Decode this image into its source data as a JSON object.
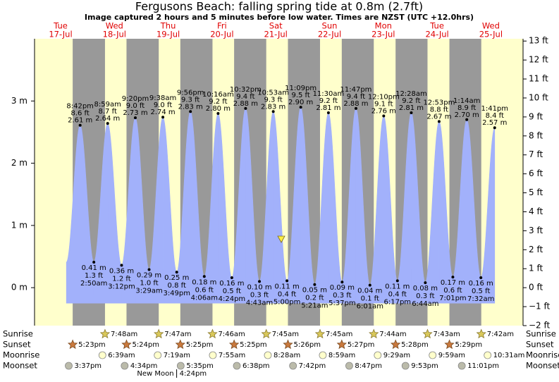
{
  "chart_data": {
    "type": "tide",
    "title": "Fergusons Beach: falling  spring tide at 0.8m (2.7ft)",
    "subtitle": "Image captured 2 hours and 5 minutes before low water. Times are NZST (UTC +12.0hrs)",
    "ylim": [
      -0.61,
      4.0
    ],
    "yticks": [
      {
        "value": 0,
        "label": "0 m"
      },
      {
        "value": 1,
        "label": "1 m"
      },
      {
        "value": 2,
        "label": "2 m"
      },
      {
        "value": 3,
        "label": "3 m"
      }
    ],
    "y2lim": [
      -2,
      13.12
    ],
    "y2ticks": [
      {
        "value": -2,
        "label": "−2 ft"
      },
      {
        "value": -1,
        "label": "−1 ft"
      },
      {
        "value": 0,
        "label": "0 ft"
      },
      {
        "value": 1,
        "label": "1 ft"
      },
      {
        "value": 2,
        "label": "2 ft"
      },
      {
        "value": 3,
        "label": "3 ft"
      },
      {
        "value": 4,
        "label": "4 ft"
      },
      {
        "value": 5,
        "label": "5 ft"
      },
      {
        "value": 6,
        "label": "6 ft"
      },
      {
        "value": 7,
        "label": "7 ft"
      },
      {
        "value": 8,
        "label": "8 ft"
      },
      {
        "value": 9,
        "label": "9 ft"
      },
      {
        "value": 10,
        "label": "10 ft"
      },
      {
        "value": 11,
        "label": "11 ft"
      },
      {
        "value": 12,
        "label": "12 ft"
      },
      {
        "value": 13,
        "label": "13 ft"
      }
    ],
    "colors": {
      "day": "#ffffcc",
      "night": "#999999",
      "tide": "#a2b1fb",
      "date": "#e00000"
    },
    "row_labels": {
      "sunrise": "Sunrise",
      "sunset": "Sunset",
      "moonrise": "Moonrise",
      "moonset": "Moonset"
    },
    "days": [
      {
        "weekday": "Tue",
        "date": "17-Jul",
        "sunrise": null,
        "sunset": "5:23pm",
        "moonrise": null,
        "moonset": "3:37pm",
        "tides": [
          {
            "time": "8:42pm",
            "value": 2.61,
            "value_label": "2.61 m",
            "ft_label": "8.6 ft"
          }
        ]
      },
      {
        "weekday": "Wed",
        "date": "18-Jul",
        "sunrise": "7:48am",
        "sunset": "5:24pm",
        "moonrise": "6:39am",
        "moonset": "4:34pm",
        "tides": [
          {
            "time": "2:50am",
            "value": 0.41,
            "value_label": "0.41 m",
            "ft_label": "1.3 ft"
          },
          {
            "time": "8:59am",
            "value": 2.64,
            "value_label": "2.64 m",
            "ft_label": "8.7 ft"
          },
          {
            "time": "3:12pm",
            "value": 0.36,
            "value_label": "0.36 m",
            "ft_label": "1.2 ft"
          },
          {
            "time": "9:20pm",
            "value": 2.73,
            "value_label": "2.73 m",
            "ft_label": "9.0 ft"
          }
        ]
      },
      {
        "weekday": "Thu",
        "date": "19-Jul",
        "sunrise": "7:47am",
        "sunset": "5:25pm",
        "moonrise": "7:19am",
        "moonset": "5:35pm",
        "new_moon": {
          "label": "New Moon",
          "time": "4:24pm"
        },
        "tides": [
          {
            "time": "3:29am",
            "value": 0.29,
            "value_label": "0.29 m",
            "ft_label": "1.0 ft"
          },
          {
            "time": "9:38am",
            "value": 2.74,
            "value_label": "2.74 m",
            "ft_label": "9.0 ft"
          },
          {
            "time": "3:49pm",
            "value": 0.25,
            "value_label": "0.25 m",
            "ft_label": "0.8 ft"
          },
          {
            "time": "9:56pm",
            "value": 2.83,
            "value_label": "2.83 m",
            "ft_label": "9.3 ft"
          }
        ]
      },
      {
        "weekday": "Fri",
        "date": "20-Jul",
        "sunrise": "7:46am",
        "sunset": "5:25pm",
        "moonrise": "7:55am",
        "moonset": "6:38pm",
        "tides": [
          {
            "time": "4:06am",
            "value": 0.18,
            "value_label": "0.18 m",
            "ft_label": "0.6 ft"
          },
          {
            "time": "10:16am",
            "value": 2.8,
            "value_label": "2.80 m",
            "ft_label": "9.2 ft"
          },
          {
            "time": "4:24pm",
            "value": 0.16,
            "value_label": "0.16 m",
            "ft_label": "0.5 ft"
          },
          {
            "time": "10:32pm",
            "value": 2.88,
            "value_label": "2.88 m",
            "ft_label": "9.4 ft"
          }
        ]
      },
      {
        "weekday": "Sat",
        "date": "21-Jul",
        "sunrise": "7:45am",
        "sunset": "5:26pm",
        "moonrise": "8:28am",
        "moonset": "7:42pm",
        "tides": [
          {
            "time": "4:43am",
            "value": 0.1,
            "value_label": "0.10 m",
            "ft_label": "0.3 ft"
          },
          {
            "time": "10:53am",
            "value": 2.83,
            "value_label": "2.83 m",
            "ft_label": "9.3 ft"
          },
          {
            "time": "5:00pm",
            "value": 0.11,
            "value_label": "0.11 m",
            "ft_label": "0.4 ft"
          },
          {
            "time": "11:09pm",
            "value": 2.9,
            "value_label": "2.90 m",
            "ft_label": "9.5 ft"
          }
        ]
      },
      {
        "weekday": "Sun",
        "date": "22-Jul",
        "sunrise": "7:45am",
        "sunset": "5:27pm",
        "moonrise": "8:59am",
        "moonset": "8:47pm",
        "tides": [
          {
            "time": "5:21am",
            "value": 0.05,
            "value_label": "0.05 m",
            "ft_label": "0.2 ft"
          },
          {
            "time": "11:30am",
            "value": 2.81,
            "value_label": "2.81 m",
            "ft_label": "9.2 ft"
          },
          {
            "time": "5:37pm",
            "value": 0.09,
            "value_label": "0.09 m",
            "ft_label": "0.3 ft"
          },
          {
            "time": "11:47pm",
            "value": 2.88,
            "value_label": "2.88 m",
            "ft_label": "9.4 ft"
          }
        ]
      },
      {
        "weekday": "Mon",
        "date": "23-Jul",
        "sunrise": "7:44am",
        "sunset": "5:28pm",
        "moonrise": "9:29am",
        "moonset": "9:53pm",
        "tides": [
          {
            "time": "6:01am",
            "value": 0.04,
            "value_label": "0.04 m",
            "ft_label": "0.1 ft"
          },
          {
            "time": "12:10pm",
            "value": 2.76,
            "value_label": "2.76 m",
            "ft_label": "9.1 ft"
          },
          {
            "time": "6:17pm",
            "value": 0.11,
            "value_label": "0.11 m",
            "ft_label": "0.4 ft"
          }
        ]
      },
      {
        "weekday": "Tue",
        "date": "24-Jul",
        "sunrise": "7:43am",
        "sunset": "5:29pm",
        "moonrise": "9:59am",
        "moonset": "11:01pm",
        "tides": [
          {
            "time": "12:28am",
            "value": 2.81,
            "value_label": "2.81 m",
            "ft_label": "9.2 ft"
          },
          {
            "time": "6:44am",
            "value": 0.08,
            "value_label": "0.08 m",
            "ft_label": "0.3 ft"
          },
          {
            "time": "12:53pm",
            "value": 2.67,
            "value_label": "2.67 m",
            "ft_label": "8.8 ft"
          },
          {
            "time": "7:01pm",
            "value": 0.17,
            "value_label": "0.17 m",
            "ft_label": "0.6 ft"
          }
        ]
      },
      {
        "weekday": "Wed",
        "date": "25-Jul",
        "sunrise": "7:42am",
        "sunset": null,
        "moonrise": "10:31am",
        "moonset": null,
        "tides": [
          {
            "time": "1:14am",
            "value": 2.7,
            "value_label": "2.70 m",
            "ft_label": "8.9 ft"
          },
          {
            "time": "7:32am",
            "value": 0.16,
            "value_label": "0.16 m",
            "ft_label": "0.5 ft"
          },
          {
            "time": "1:41pm",
            "value": 2.57,
            "value_label": "2.57 m",
            "ft_label": "8.4 ft"
          }
        ]
      }
    ]
  }
}
